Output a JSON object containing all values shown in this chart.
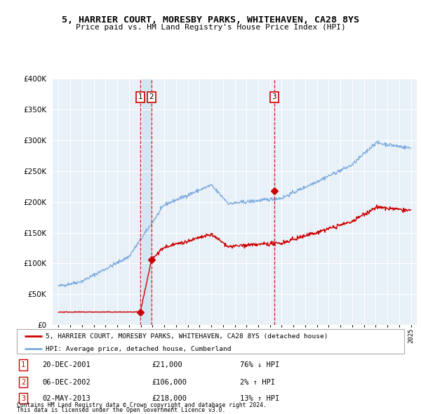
{
  "title1": "5, HARRIER COURT, MORESBY PARKS, WHITEHAVEN, CA28 8YS",
  "title2": "Price paid vs. HM Land Registry's House Price Index (HPI)",
  "transactions": [
    {
      "num": 1,
      "date_label": "20-DEC-2001",
      "date_x": 2001.97,
      "price": 21000,
      "pct": "76%",
      "dir": "↓"
    },
    {
      "num": 2,
      "date_label": "06-DEC-2002",
      "date_x": 2002.92,
      "price": 106000,
      "pct": "2%",
      "dir": "↑"
    },
    {
      "num": 3,
      "date_label": "02-MAY-2013",
      "date_x": 2013.37,
      "price": 218000,
      "pct": "13%",
      "dir": "↑"
    }
  ],
  "ylim": [
    0,
    400000
  ],
  "xlim": [
    1994.5,
    2025.5
  ],
  "red_color": "#cc0000",
  "blue_color": "#7aaadd",
  "shade_color": "#ddeeff",
  "legend_label_red": "5, HARRIER COURT, MORESBY PARKS, WHITEHAVEN, CA28 8YS (detached house)",
  "legend_label_blue": "HPI: Average price, detached house, Cumberland",
  "footer1": "Contains HM Land Registry data © Crown copyright and database right 2024.",
  "footer2": "This data is licensed under the Open Government Licence v3.0.",
  "table_rows": [
    {
      "num": "1",
      "date": "20-DEC-2001",
      "price": "£21,000",
      "pct": "76% ↓ HPI"
    },
    {
      "num": "2",
      "date": "06-DEC-2002",
      "price": "£106,000",
      "pct": "2% ↑ HPI"
    },
    {
      "num": "3",
      "date": "02-MAY-2013",
      "price": "£218,000",
      "pct": "13% ↑ HPI"
    }
  ]
}
